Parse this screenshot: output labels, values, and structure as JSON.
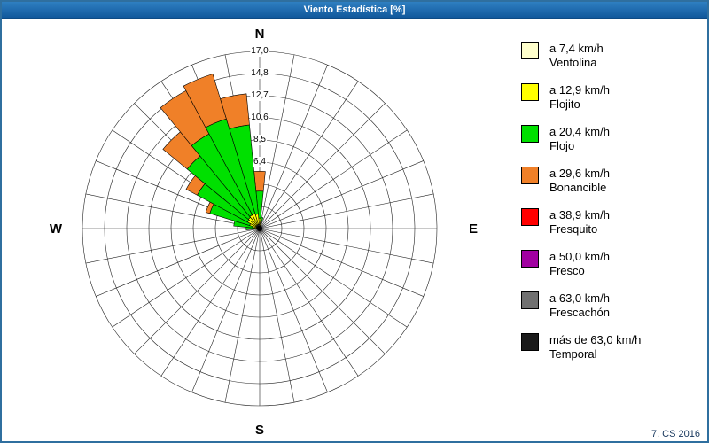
{
  "window": {
    "title": "Viento Estadística [%]",
    "footer": "7. CS 2016"
  },
  "compass": {
    "n": "N",
    "e": "E",
    "s": "S",
    "w": "W"
  },
  "chart_data": {
    "type": "windrose",
    "units": "%",
    "title": "Viento Estadística [%]",
    "sectors": 32,
    "rings": 8,
    "max_value": 17.0,
    "ring_labels": [
      "6,4",
      "8,5",
      "10,6",
      "12,7",
      "14,8",
      "17,0"
    ],
    "ring_label_rings": [
      3,
      4,
      5,
      6,
      7,
      8
    ],
    "grid_color": "#222222",
    "categories": [
      {
        "name": "Ventolina",
        "speed": "a 7,4 km/h",
        "color": "#FFFFCC"
      },
      {
        "name": "Flojito",
        "speed": "a 12,9 km/h",
        "color": "#FFFF00"
      },
      {
        "name": "Flojo",
        "speed": "a 20,4 km/h",
        "color": "#00E000"
      },
      {
        "name": "Bonancible",
        "speed": "a 29,6 km/h",
        "color": "#F08028"
      },
      {
        "name": "Fresquito",
        "speed": "a 38,9 km/h",
        "color": "#FF0000"
      },
      {
        "name": "Fresco",
        "speed": "a 50,0 km/h",
        "color": "#A000A0"
      },
      {
        "name": "Frescachón",
        "speed": "a 63,0 km/h",
        "color": "#707070"
      },
      {
        "name": "Temporal",
        "speed": "más de 63,0 km/h",
        "color": "#1A1A1A"
      }
    ],
    "petals": [
      {
        "angle_deg": 0.0,
        "values": [
          0.3,
          0.7,
          2.6,
          1.9,
          0,
          0,
          0,
          0
        ]
      },
      {
        "angle_deg": 11.25,
        "values": [
          0.2,
          0.3,
          0.6,
          0.0,
          0,
          0,
          0,
          0
        ]
      },
      {
        "angle_deg": 270.0,
        "values": [
          0.2,
          0.3,
          0.8,
          0.0,
          0,
          0,
          0,
          0
        ]
      },
      {
        "angle_deg": 281.25,
        "values": [
          0.2,
          0.5,
          1.8,
          0.0,
          0,
          0,
          0,
          0
        ]
      },
      {
        "angle_deg": 292.5,
        "values": [
          0.3,
          0.7,
          4.0,
          0.4,
          0,
          0,
          0,
          0
        ]
      },
      {
        "angle_deg": 303.75,
        "values": [
          0.4,
          0.9,
          5.5,
          1.2,
          0,
          0,
          0,
          0
        ]
      },
      {
        "angle_deg": 315.0,
        "values": [
          0.4,
          1.0,
          7.6,
          3.0,
          0,
          0,
          0,
          0
        ]
      },
      {
        "angle_deg": 326.25,
        "values": [
          0.4,
          1.1,
          8.8,
          4.7,
          0,
          0,
          0,
          0
        ]
      },
      {
        "angle_deg": 337.5,
        "values": [
          0.4,
          1.1,
          9.5,
          4.5,
          0,
          0,
          0,
          0
        ]
      },
      {
        "angle_deg": 348.75,
        "values": [
          0.4,
          1.0,
          8.6,
          3.0,
          0,
          0,
          0,
          0
        ]
      }
    ]
  }
}
